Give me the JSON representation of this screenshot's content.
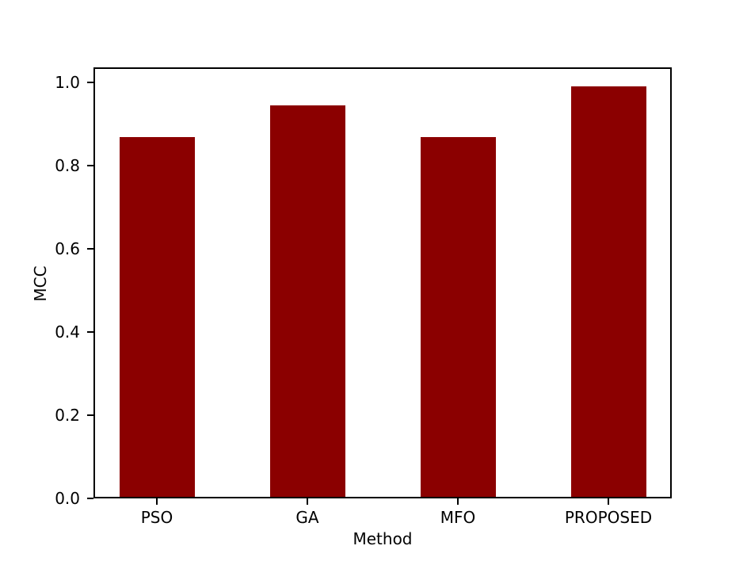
{
  "chart_data": {
    "type": "bar",
    "title": "",
    "categories": [
      "PSO",
      "GA",
      "MFO",
      "PROPOSED"
    ],
    "values": [
      0.868,
      0.945,
      0.868,
      0.99
    ],
    "xlabel": "Method",
    "ylabel": "MCC",
    "ylim": [
      0.0,
      1.036
    ],
    "yticks": [
      {
        "value": 0.0,
        "label": "0.0"
      },
      {
        "value": 0.2,
        "label": "0.2"
      },
      {
        "value": 0.4,
        "label": "0.4"
      },
      {
        "value": 0.6,
        "label": "0.6"
      },
      {
        "value": 0.8,
        "label": "0.8"
      },
      {
        "value": 1.0,
        "label": "1.0"
      }
    ],
    "grid": false,
    "legend": "none",
    "bar_color": "#8B0000",
    "axis_color": "#000000",
    "text_color": "#000000",
    "background_color": "#FFFFFF"
  }
}
